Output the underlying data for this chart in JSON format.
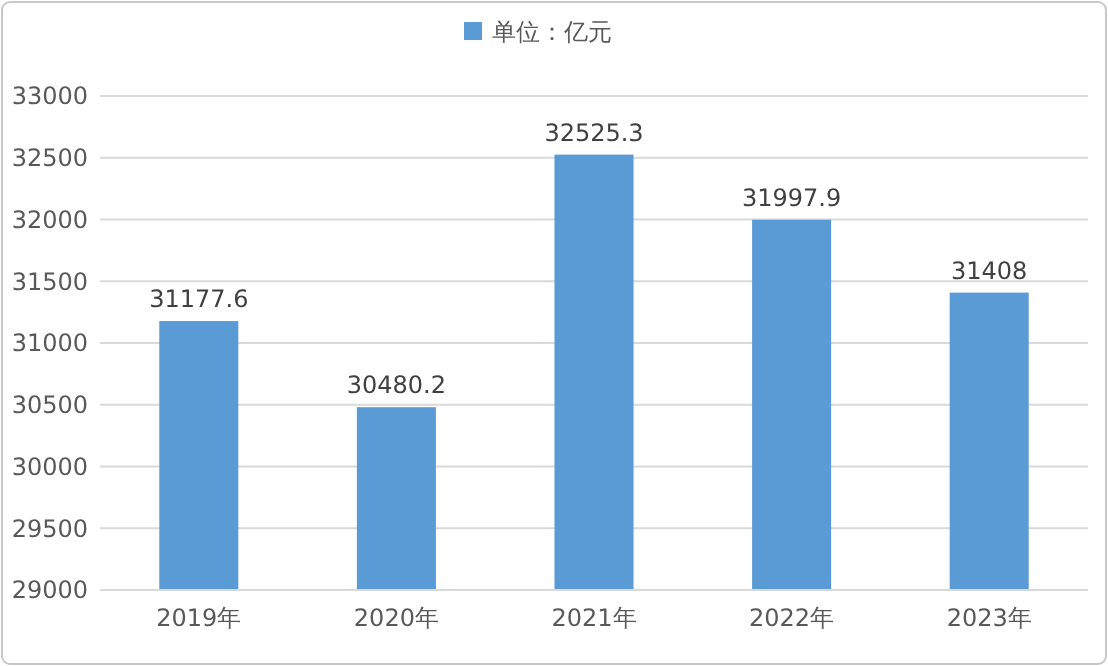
{
  "chart_data": {
    "type": "bar",
    "categories": [
      "2019年",
      "2020年",
      "2021年",
      "2022年",
      "2023年"
    ],
    "series": [
      {
        "name": "单位：亿元",
        "color": "#5b9bd5",
        "values": [
          31177.6,
          30480.2,
          32525.3,
          31997.9,
          31408
        ]
      }
    ],
    "ylim": [
      29000,
      33000
    ],
    "yticks": [
      29000,
      29500,
      30000,
      30500,
      31000,
      31500,
      32000,
      32500,
      33000
    ],
    "grid": "y",
    "legend": "top",
    "data_labels": true
  }
}
